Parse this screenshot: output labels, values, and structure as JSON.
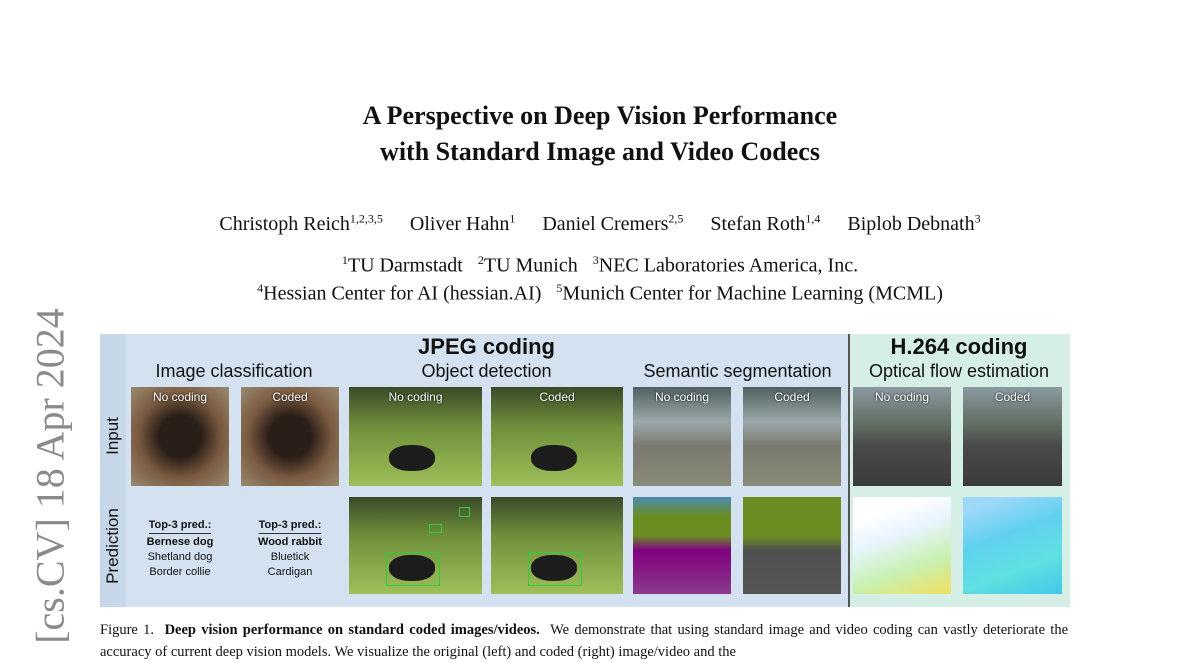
{
  "title_lines": [
    "A Perspective on Deep Vision Performance",
    "with Standard Image and Video Codecs"
  ],
  "authors": [
    {
      "name": "Christoph Reich",
      "sup": "1,2,3,5"
    },
    {
      "name": "Oliver Hahn",
      "sup": "1"
    },
    {
      "name": "Daniel Cremers",
      "sup": "2,5"
    },
    {
      "name": "Stefan Roth",
      "sup": "1,4"
    },
    {
      "name": "Biplob Debnath",
      "sup": "3"
    }
  ],
  "affiliations": [
    [
      {
        "sup": "1",
        "name": "TU Darmstadt"
      },
      {
        "sup": "2",
        "name": "TU Munich"
      },
      {
        "sup": "3",
        "name": "NEC Laboratories America, Inc."
      }
    ],
    [
      {
        "sup": "4",
        "name": "Hessian Center for AI (hessian.AI)"
      },
      {
        "sup": "5",
        "name": "Munich Center for Machine Learning (MCML)"
      }
    ]
  ],
  "arxiv_stamp": "[cs.CV]  18 Apr 2024",
  "figure": {
    "jpeg_header": "JPEG coding",
    "h264_header": "H.264 coding",
    "tasks": [
      "Image classification",
      "Object detection",
      "Semantic segmentation",
      "Optical flow estimation"
    ],
    "row_labels": [
      "Input",
      "Prediction"
    ],
    "image_labels": [
      "No coding",
      "Coded",
      "No coding",
      "Coded",
      "No coding",
      "Coded",
      "No coding",
      "Coded"
    ],
    "classification": [
      {
        "header": "Top-3 pred.:",
        "preds": [
          "Bernese dog",
          "Shetland dog",
          "Border collie"
        ]
      },
      {
        "header": "Top-3 pred.:",
        "preds": [
          "Wood rabbit",
          "Bluetick",
          "Cardigan"
        ]
      }
    ],
    "colors": {
      "jpeg_bg": "#d3e1f0",
      "h264_bg": "#d5efe6",
      "detection_box": "#2ecc40"
    }
  },
  "caption": {
    "label": "Figure 1.",
    "bold": "Deep vision performance on standard coded images/videos.",
    "text": "We demonstrate that using standard image and video coding can vastly deteriorate the accuracy of current deep vision models. We visualize the original (left) and coded (right) image/video and the"
  }
}
